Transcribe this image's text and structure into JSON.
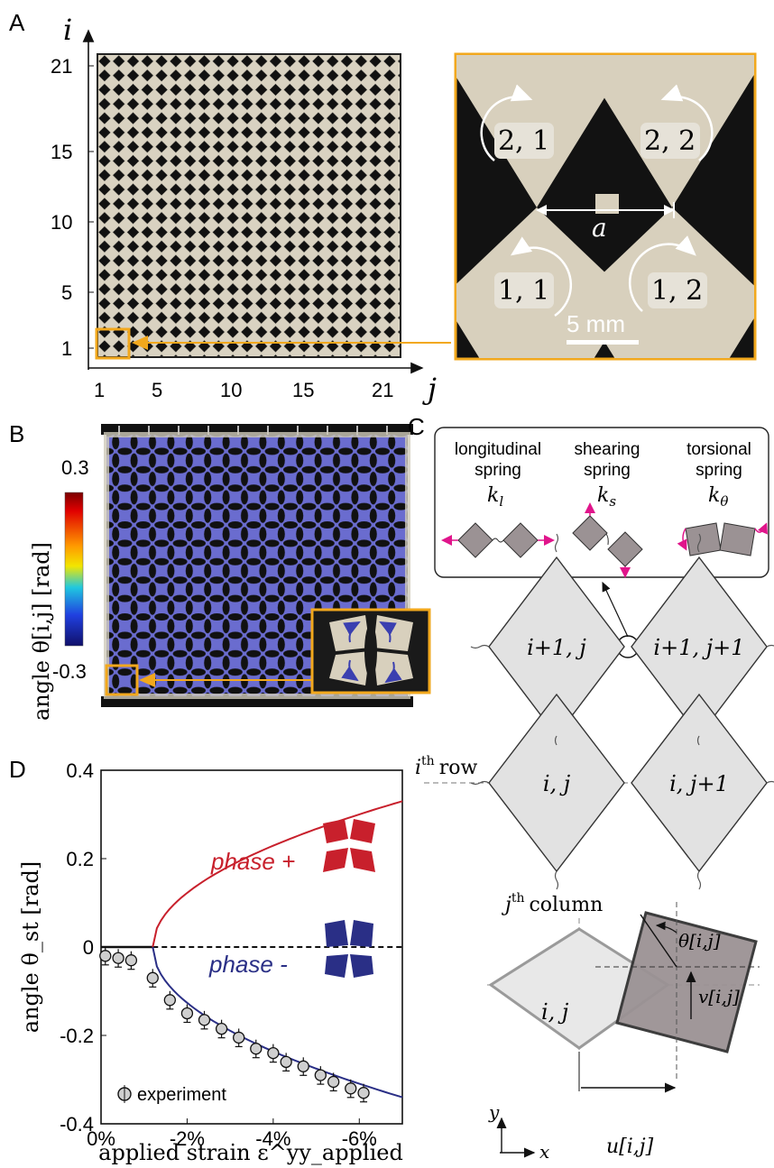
{
  "panels": {
    "A": {
      "letter": "A",
      "axis_i": "i",
      "axis_j": "j",
      "i_ticks": [
        "21",
        "15",
        "10",
        "5",
        "1"
      ],
      "j_ticks": [
        "1",
        "5",
        "10",
        "15",
        "21"
      ],
      "inset": {
        "cells": [
          "2, 1",
          "2, 2",
          "1, 1",
          "1, 2"
        ],
        "spacing": "a",
        "scalebar": "5 mm"
      },
      "colors": {
        "highlight": "#f2a81d",
        "photo_bg": "#111111",
        "material": "#d8d0bd"
      }
    },
    "B": {
      "letter": "B",
      "colorbar_label": "angle θ[i,j] [rad]",
      "colorbar_max": "0.3",
      "colorbar_min": "-0.3",
      "colors": {
        "tint": "#5b5fc7"
      }
    },
    "C": {
      "letter": "C",
      "springs": [
        {
          "line1": "longitudinal",
          "line2": "spring",
          "symbol": "k",
          "sub": "l"
        },
        {
          "line1": "shearing",
          "line2": "spring",
          "symbol": "k",
          "sub": "s"
        },
        {
          "line1": "torsional",
          "line2": "spring",
          "symbol": "k",
          "sub": "θ"
        }
      ],
      "cells": {
        "top_left": "i+1, j",
        "top_right": "i+1, j+1",
        "bottom_left": "i, j",
        "bottom_right": "i, j+1"
      },
      "row_label": {
        "base": "i",
        "sup": "th",
        "text": "row"
      },
      "col_label": {
        "base": "j",
        "sup": "th",
        "text": "column"
      },
      "kinematics": {
        "cell": "i, j",
        "theta": "θ[i,j]",
        "v": "v[i,j]",
        "u": "u[i,j]",
        "x": "x",
        "y": "y"
      },
      "colors": {
        "arrow": "#e0158b",
        "block": "#9b9294",
        "cell": "#e2e2e2"
      }
    },
    "D": {
      "letter": "D",
      "phase_plus": "phase +",
      "phase_minus": "phase -",
      "legend": "experiment",
      "colors": {
        "plus": "#c8202c",
        "minus": "#2a2f86"
      }
    }
  },
  "chart_data": {
    "type": "line",
    "title": "",
    "xlabel": "applied strain ε^yy_applied",
    "ylabel": "angle θ_st [rad]",
    "xlim": [
      0,
      -7
    ],
    "ylim": [
      -0.4,
      0.4
    ],
    "x_ticks": [
      "0%",
      "-2%",
      "-4%",
      "-6%"
    ],
    "y_ticks": [
      "0.4",
      "0.2",
      "0",
      "-0.2",
      "-0.4"
    ],
    "series": [
      {
        "name": "phase +",
        "bifurcation_strain": -1.2,
        "end_value": 0.33,
        "end_strain": -7
      },
      {
        "name": "phase -",
        "bifurcation_strain": -1.2,
        "end_value": -0.34,
        "end_strain": -7
      },
      {
        "name": "experiment",
        "x": [
          -0.1,
          -0.4,
          -0.7,
          -1.2,
          -1.6,
          -2.0,
          -2.4,
          -2.8,
          -3.2,
          -3.6,
          -4.0,
          -4.3,
          -4.7,
          -5.1,
          -5.4,
          -5.8,
          -6.1
        ],
        "y": [
          -0.02,
          -0.025,
          -0.03,
          -0.07,
          -0.12,
          -0.15,
          -0.165,
          -0.185,
          -0.205,
          -0.23,
          -0.24,
          -0.26,
          -0.27,
          -0.29,
          -0.305,
          -0.32,
          -0.33
        ]
      }
    ]
  }
}
